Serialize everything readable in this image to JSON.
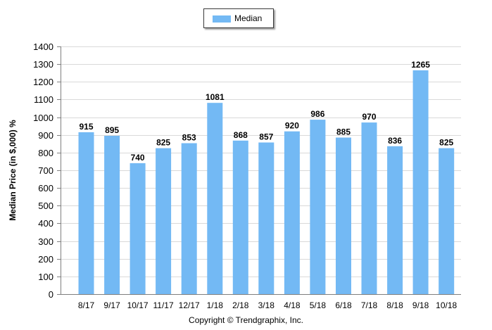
{
  "legend": {
    "label": "Median"
  },
  "footer": {
    "text": "Copyright © Trendgraphix, Inc."
  },
  "colors": {
    "bar": "#73b9f4",
    "grid": "#d9d9d9",
    "axis": "#7f7f7f"
  },
  "chart_data": {
    "type": "bar",
    "categories": [
      "8/17",
      "9/17",
      "10/17",
      "11/17",
      "12/17",
      "1/18",
      "2/18",
      "3/18",
      "4/18",
      "5/18",
      "6/18",
      "7/18",
      "8/18",
      "9/18",
      "10/18"
    ],
    "series": [
      {
        "name": "Median",
        "values": [
          915,
          895,
          740,
          825,
          853,
          1081,
          868,
          857,
          920,
          986,
          885,
          970,
          836,
          1265,
          825
        ]
      }
    ],
    "ylabel": "Median Price (in $,000) %",
    "xlabel": "",
    "ylim": [
      0,
      1400
    ],
    "yticks": [
      0,
      100,
      200,
      300,
      400,
      500,
      600,
      700,
      800,
      900,
      1000,
      1100,
      1200,
      1300,
      1400
    ],
    "grid": true,
    "legend_position": "top-center",
    "data_labels": true
  }
}
